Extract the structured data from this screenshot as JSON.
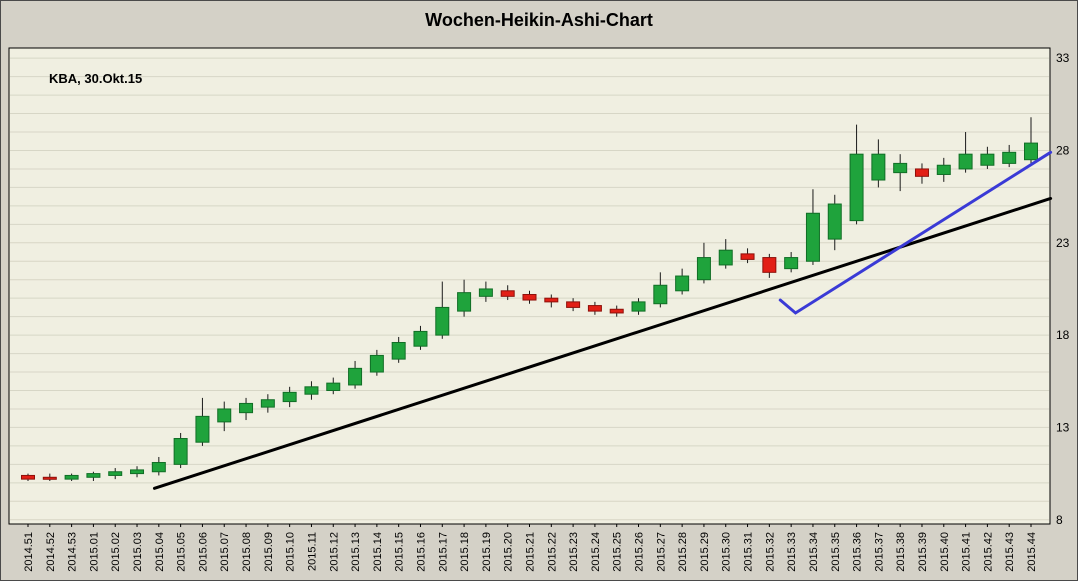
{
  "title": "Wochen-Heikin-Ashi-Chart",
  "annotation": "KBA, 30.Okt.15",
  "colors": {
    "background": "#d4d1c7",
    "plot_bg": "#f0efe1",
    "grid": "#d7d6c6",
    "frame": "#000000",
    "wick": "#1a1a1a",
    "up_fill": "#1fa33c",
    "up_stroke": "#116e26",
    "down_fill": "#e21f16",
    "down_stroke": "#8e100a",
    "trend_black": "#000000",
    "trend_blue": "#3a3ad6",
    "label_color": "#000000"
  },
  "chart_data": {
    "type": "candlestick",
    "title": "Wochen-Heikin-Ashi-Chart",
    "annotation": "KBA, 30.Okt.15",
    "ylabel": "",
    "xlabel": "",
    "y_range": [
      8,
      33
    ],
    "y_ticks": [
      8,
      13,
      18,
      23,
      28,
      33
    ],
    "grid": "horizontal-every-1-unit",
    "legend": "none",
    "candles": [
      {
        "w": "2014.51",
        "o": 10.4,
        "h": 10.5,
        "l": 10.1,
        "c": 10.2
      },
      {
        "w": "2014.52",
        "o": 10.3,
        "h": 10.5,
        "l": 10.1,
        "c": 10.2
      },
      {
        "w": "2014.53",
        "o": 10.2,
        "h": 10.5,
        "l": 10.1,
        "c": 10.4
      },
      {
        "w": "2015.01",
        "o": 10.3,
        "h": 10.6,
        "l": 10.1,
        "c": 10.5
      },
      {
        "w": "2015.02",
        "o": 10.4,
        "h": 10.8,
        "l": 10.2,
        "c": 10.6
      },
      {
        "w": "2015.03",
        "o": 10.5,
        "h": 10.9,
        "l": 10.3,
        "c": 10.7
      },
      {
        "w": "2015.04",
        "o": 10.6,
        "h": 11.4,
        "l": 10.4,
        "c": 11.1
      },
      {
        "w": "2015.05",
        "o": 11.0,
        "h": 12.7,
        "l": 10.8,
        "c": 12.4
      },
      {
        "w": "2015.06",
        "o": 12.2,
        "h": 14.6,
        "l": 12.0,
        "c": 13.6
      },
      {
        "w": "2015.07",
        "o": 13.3,
        "h": 14.4,
        "l": 12.8,
        "c": 14.0
      },
      {
        "w": "2015.08",
        "o": 13.8,
        "h": 14.6,
        "l": 13.4,
        "c": 14.3
      },
      {
        "w": "2015.09",
        "o": 14.1,
        "h": 14.8,
        "l": 13.8,
        "c": 14.5
      },
      {
        "w": "2015.10",
        "o": 14.4,
        "h": 15.2,
        "l": 14.1,
        "c": 14.9
      },
      {
        "w": "2015.11",
        "o": 14.8,
        "h": 15.5,
        "l": 14.5,
        "c": 15.2
      },
      {
        "w": "2015.12",
        "o": 15.0,
        "h": 15.7,
        "l": 14.8,
        "c": 15.4
      },
      {
        "w": "2015.13",
        "o": 15.3,
        "h": 16.6,
        "l": 15.1,
        "c": 16.2
      },
      {
        "w": "2015.14",
        "o": 16.0,
        "h": 17.2,
        "l": 15.8,
        "c": 16.9
      },
      {
        "w": "2015.15",
        "o": 16.7,
        "h": 17.9,
        "l": 16.5,
        "c": 17.6
      },
      {
        "w": "2015.16",
        "o": 17.4,
        "h": 18.5,
        "l": 17.2,
        "c": 18.2
      },
      {
        "w": "2015.17",
        "o": 18.0,
        "h": 20.9,
        "l": 17.8,
        "c": 19.5
      },
      {
        "w": "2015.18",
        "o": 19.3,
        "h": 21.0,
        "l": 19.0,
        "c": 20.3
      },
      {
        "w": "2015.19",
        "o": 20.1,
        "h": 20.9,
        "l": 19.8,
        "c": 20.5
      },
      {
        "w": "2015.20",
        "o": 20.4,
        "h": 20.7,
        "l": 19.9,
        "c": 20.1
      },
      {
        "w": "2015.21",
        "o": 20.2,
        "h": 20.4,
        "l": 19.7,
        "c": 19.9
      },
      {
        "w": "2015.22",
        "o": 20.0,
        "h": 20.2,
        "l": 19.5,
        "c": 19.8
      },
      {
        "w": "2015.23",
        "o": 19.8,
        "h": 20.0,
        "l": 19.3,
        "c": 19.5
      },
      {
        "w": "2015.24",
        "o": 19.6,
        "h": 19.8,
        "l": 19.1,
        "c": 19.3
      },
      {
        "w": "2015.25",
        "o": 19.4,
        "h": 19.6,
        "l": 19.0,
        "c": 19.2
      },
      {
        "w": "2015.26",
        "o": 19.3,
        "h": 20.0,
        "l": 19.1,
        "c": 19.8
      },
      {
        "w": "2015.27",
        "o": 19.7,
        "h": 21.4,
        "l": 19.5,
        "c": 20.7
      },
      {
        "w": "2015.28",
        "o": 20.4,
        "h": 21.6,
        "l": 20.2,
        "c": 21.2
      },
      {
        "w": "2015.29",
        "o": 21.0,
        "h": 23.0,
        "l": 20.8,
        "c": 22.2
      },
      {
        "w": "2015.30",
        "o": 21.8,
        "h": 23.2,
        "l": 21.6,
        "c": 22.6
      },
      {
        "w": "2015.31",
        "o": 22.4,
        "h": 22.7,
        "l": 21.9,
        "c": 22.1
      },
      {
        "w": "2015.32",
        "o": 22.2,
        "h": 22.4,
        "l": 21.1,
        "c": 21.4
      },
      {
        "w": "2015.33",
        "o": 21.6,
        "h": 22.5,
        "l": 21.4,
        "c": 22.2
      },
      {
        "w": "2015.34",
        "o": 22.0,
        "h": 25.9,
        "l": 21.8,
        "c": 24.6
      },
      {
        "w": "2015.35",
        "o": 23.2,
        "h": 25.6,
        "l": 22.6,
        "c": 25.1
      },
      {
        "w": "2015.36",
        "o": 24.2,
        "h": 29.4,
        "l": 24.0,
        "c": 27.8
      },
      {
        "w": "2015.37",
        "o": 26.4,
        "h": 28.6,
        "l": 26.0,
        "c": 27.8
      },
      {
        "w": "2015.38",
        "o": 26.8,
        "h": 27.8,
        "l": 25.8,
        "c": 27.3
      },
      {
        "w": "2015.39",
        "o": 27.0,
        "h": 27.3,
        "l": 26.2,
        "c": 26.6
      },
      {
        "w": "2015.40",
        "o": 26.7,
        "h": 27.6,
        "l": 26.3,
        "c": 27.2
      },
      {
        "w": "2015.41",
        "o": 27.0,
        "h": 29.0,
        "l": 26.8,
        "c": 27.8
      },
      {
        "w": "2015.42",
        "o": 27.2,
        "h": 28.2,
        "l": 27.0,
        "c": 27.8
      },
      {
        "w": "2015.43",
        "o": 27.3,
        "h": 28.3,
        "l": 27.1,
        "c": 27.9
      },
      {
        "w": "2015.44",
        "o": 27.5,
        "h": 29.8,
        "l": 27.3,
        "c": 28.4
      }
    ],
    "trendlines": [
      {
        "name": "long-term-support-trendline",
        "color": "#000000",
        "width": 3,
        "points": [
          {
            "i": 5.8,
            "v": 9.7
          },
          {
            "i": 46.9,
            "v": 25.4
          }
        ]
      },
      {
        "name": "short-term-breakout-trendline",
        "color": "#3a3ad6",
        "width": 3,
        "points": [
          {
            "i": 34.5,
            "v": 19.9
          },
          {
            "i": 35.2,
            "v": 19.2
          },
          {
            "i": 46.9,
            "v": 27.9
          }
        ]
      }
    ]
  }
}
